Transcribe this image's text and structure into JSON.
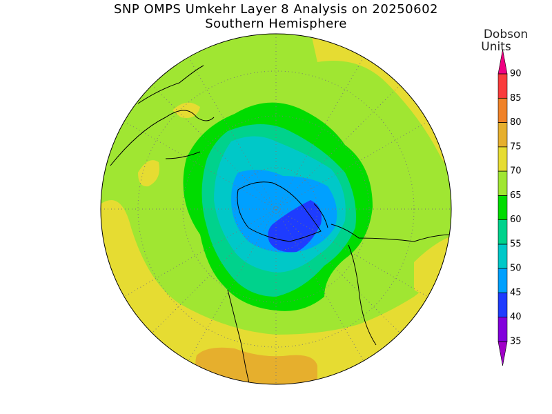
{
  "title": "SNP OMPS Umkehr Layer 8 Analysis on 20250602",
  "subtitle": "Southern Hemisphere",
  "colorbar": {
    "label": [
      "Dobson",
      "Units"
    ],
    "ticks": [
      35,
      40,
      45,
      50,
      55,
      60,
      65,
      70,
      75,
      80,
      85,
      90
    ],
    "colors": [
      "#a000c8",
      "#8200dc",
      "#1e3cff",
      "#00a0ff",
      "#00c8c8",
      "#00d28c",
      "#00dc00",
      "#a0e632",
      "#e6dc32",
      "#e6af2d",
      "#f08228",
      "#fa3c3c",
      "#f00082"
    ],
    "extend": "both"
  }
}
